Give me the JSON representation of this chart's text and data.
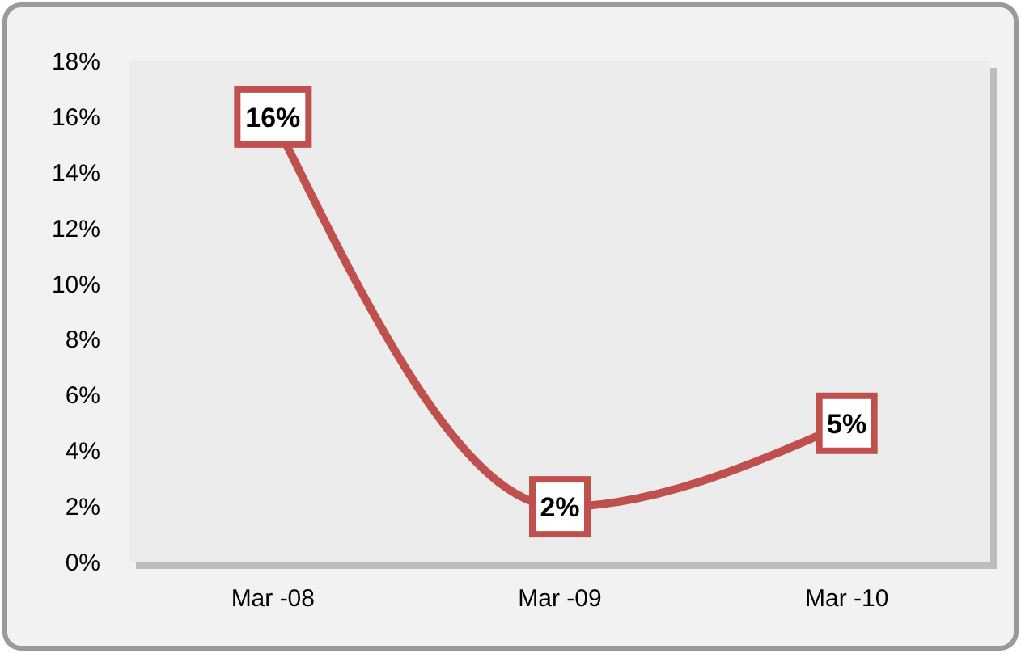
{
  "chart_data": {
    "type": "line",
    "categories": [
      "Mar -08",
      "Mar -09",
      "Mar -10"
    ],
    "series": [
      {
        "color": "#c0504d",
        "values": [
          16,
          2,
          5
        ],
        "value_labels": [
          "16%",
          "2%",
          "5%"
        ]
      }
    ],
    "ylim": [
      0,
      18
    ],
    "yticks": [
      {
        "value": 0,
        "label": "0%"
      },
      {
        "value": 2,
        "label": "2%"
      },
      {
        "value": 4,
        "label": "4%"
      },
      {
        "value": 6,
        "label": "6%"
      },
      {
        "value": 8,
        "label": "8%"
      },
      {
        "value": 10,
        "label": "10%"
      },
      {
        "value": 12,
        "label": "12%"
      },
      {
        "value": 14,
        "label": "14%"
      },
      {
        "value": 16,
        "label": "16%"
      },
      {
        "value": 18,
        "label": "18%"
      }
    ],
    "grid": false,
    "marker": "square",
    "line_style": "solid"
  }
}
